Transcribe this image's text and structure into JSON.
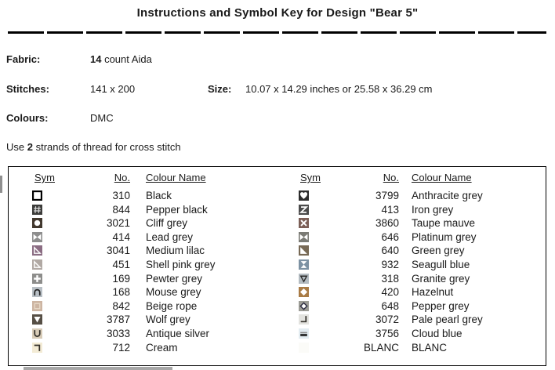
{
  "title": "Instructions and Symbol Key for Design \"Bear 5\"",
  "info": {
    "fabric_label": "Fabric:",
    "fabric_count": "14",
    "fabric_rest": " count Aida",
    "stitches_label": "Stitches:",
    "stitches_value": "141 x 200",
    "size_label": "Size:",
    "size_value": "10.07 x 14.29 inches or 25.58 x 36.29 cm",
    "colours_label": "Colours:",
    "colours_value": "DMC",
    "strands_prefix": "Use ",
    "strands_bold": "2",
    "strands_suffix": " strands of thread for cross stitch"
  },
  "key_table": {
    "headers": {
      "sym": "Sym",
      "no": "No.",
      "name": "Colour Name"
    },
    "left_rows": [
      {
        "symbol": {
          "glyph": "square",
          "fg": "#ffffff",
          "bg": "#000000"
        },
        "no": "310",
        "name": "Black"
      },
      {
        "symbol": {
          "glyph": "hash",
          "fg": "#dcdcdc",
          "bg": "#3c3c3a"
        },
        "no": "844",
        "name": "Pepper black"
      },
      {
        "symbol": {
          "glyph": "circle",
          "fg": "#ffffff",
          "bg": "#42382e"
        },
        "no": "3021",
        "name": "Cliff grey"
      },
      {
        "symbol": {
          "glyph": "bowtie",
          "fg": "#ffffff",
          "bg": "#8e8e8e"
        },
        "no": "414",
        "name": "Lead grey"
      },
      {
        "symbol": {
          "glyph": "tri-ll-outline",
          "fg": "#ffffff",
          "bg": "#8b6d83"
        },
        "no": "3041",
        "name": "Medium lilac"
      },
      {
        "symbol": {
          "glyph": "tri-ll-outline",
          "fg": "#ffffff",
          "bg": "#b1a9a4"
        },
        "no": "451",
        "name": "Shell pink grey"
      },
      {
        "symbol": {
          "glyph": "plus",
          "fg": "#ffffff",
          "bg": "#8d8d8b"
        },
        "no": "169",
        "name": "Pewter grey"
      },
      {
        "symbol": {
          "glyph": "arch",
          "fg": "#222222",
          "bg": "#b8bfc5"
        },
        "no": "168",
        "name": "Mouse grey"
      },
      {
        "symbol": {
          "glyph": "square-outline",
          "fg": "#e8dac9",
          "bg": "#cdb5a2"
        },
        "no": "842",
        "name": "Beige rope"
      },
      {
        "symbol": {
          "glyph": "tri-down",
          "fg": "#ffffff",
          "bg": "#564f45"
        },
        "no": "3787",
        "name": "Wolf grey"
      },
      {
        "symbol": {
          "glyph": "u-shape",
          "fg": "#33302a",
          "bg": "#d8ccb8"
        },
        "no": "3033",
        "name": "Antique silver"
      },
      {
        "symbol": {
          "glyph": "corner-tr",
          "fg": "#33302a",
          "bg": "#f3ebd5"
        },
        "no": "712",
        "name": "Cream"
      }
    ],
    "right_rows": [
      {
        "symbol": {
          "glyph": "heart",
          "fg": "#ffffff",
          "bg": "#2d2d2d"
        },
        "no": "3799",
        "name": "Anthracite grey"
      },
      {
        "symbol": {
          "glyph": "z",
          "fg": "#ffffff",
          "bg": "#4b4b4b"
        },
        "no": "413",
        "name": "Iron grey"
      },
      {
        "symbol": {
          "glyph": "x",
          "fg": "#ffffff",
          "bg": "#7c5f57"
        },
        "no": "3860",
        "name": "Taupe mauve"
      },
      {
        "symbol": {
          "glyph": "bowtie",
          "fg": "#ffffff",
          "bg": "#7b7b75"
        },
        "no": "646",
        "name": "Platinum grey"
      },
      {
        "symbol": {
          "glyph": "tri-ll",
          "fg": "#ffffff",
          "bg": "#776955"
        },
        "no": "640",
        "name": "Green grey"
      },
      {
        "symbol": {
          "glyph": "hourglass",
          "fg": "#ffffff",
          "bg": "#7d92a3"
        },
        "no": "932",
        "name": "Seagull blue"
      },
      {
        "symbol": {
          "glyph": "tri-down-outline",
          "fg": "#2a2a2a",
          "bg": "#b4bcc2"
        },
        "no": "318",
        "name": "Granite grey"
      },
      {
        "symbol": {
          "glyph": "diamond",
          "fg": "#ffffff",
          "bg": "#a97b45"
        },
        "no": "420",
        "name": "Hazelnut"
      },
      {
        "symbol": {
          "glyph": "diamond-outline",
          "fg": "#2b2b40",
          "fg2": "#ffffff",
          "bg": "#9c9c95"
        },
        "no": "648",
        "name": "Pepper grey"
      },
      {
        "symbol": {
          "glyph": "corner-br",
          "fg": "#33302a",
          "bg": "#e3e3df"
        },
        "no": "3072",
        "name": "Pale pearl grey"
      },
      {
        "symbol": {
          "glyph": "double-bar",
          "fg": "#1c1c1c",
          "fg2": "#8c8c8c",
          "bg": "#e3ecf1"
        },
        "no": "3756",
        "name": "Cloud blue"
      },
      {
        "symbol": {
          "glyph": "none",
          "fg": "#ffffff",
          "bg": "#fbfbf8"
        },
        "no": "BLANC",
        "name": "BLANC"
      }
    ]
  }
}
